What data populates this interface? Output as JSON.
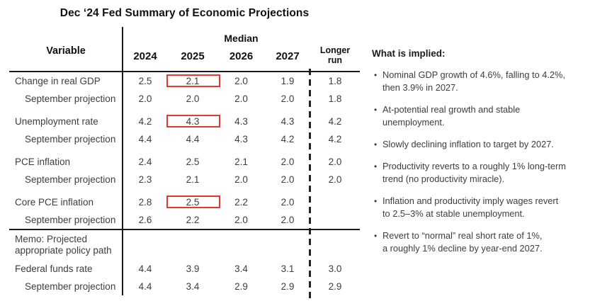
{
  "title": "Dec ‘24 Fed Summary of Economic Projections",
  "table": {
    "variable_header": "Variable",
    "median_header": "Median",
    "years": [
      "2024",
      "2025",
      "2026",
      "2027"
    ],
    "longer_run_header": "Longer run",
    "rows": [
      {
        "label": "Change in real GDP",
        "values": [
          "2.5",
          "2.1",
          "2.0",
          "1.9",
          "1.8"
        ]
      },
      {
        "label": "September projection",
        "values": [
          "2.0",
          "2.0",
          "2.0",
          "2.0",
          "1.8"
        ]
      },
      {
        "label": "Unemployment rate",
        "values": [
          "4.2",
          "4.3",
          "4.3",
          "4.3",
          "4.2"
        ]
      },
      {
        "label": "September projection",
        "values": [
          "4.4",
          "4.4",
          "4.3",
          "4.2",
          "4.2"
        ]
      },
      {
        "label": "PCE inflation",
        "values": [
          "2.4",
          "2.5",
          "2.1",
          "2.0",
          "2.0"
        ]
      },
      {
        "label": "September projection",
        "values": [
          "2.3",
          "2.1",
          "2.0",
          "2.0",
          "2.0"
        ]
      },
      {
        "label": "Core PCE inflation",
        "values": [
          "2.8",
          "2.5",
          "2.2",
          "2.0",
          ""
        ]
      },
      {
        "label": "September projection",
        "values": [
          "2.6",
          "2.2",
          "2.0",
          "2.0",
          ""
        ]
      },
      {
        "label": "Federal funds rate",
        "values": [
          "4.4",
          "3.9",
          "3.4",
          "3.1",
          "3.0"
        ]
      },
      {
        "label": "September projection",
        "values": [
          "4.4",
          "3.4",
          "2.9",
          "2.9",
          "2.9"
        ]
      }
    ],
    "memo_label": "Memo: Projected\nappropriate policy path",
    "highlight_color": "#e23a2e",
    "highlights": [
      {
        "row": 0,
        "column": "2025",
        "value": "2.1"
      },
      {
        "row": 2,
        "column": "2025",
        "value": "4.3"
      },
      {
        "row": 6,
        "column": "2025",
        "value": "2.5"
      }
    ]
  },
  "panel": {
    "heading": "What is implied:",
    "bullet_marker": "•",
    "bullets": [
      "Nominal GDP growth of 4.6%, falling to 4.2%,\nthen 3.9% in 2027.",
      "At-potential real growth and stable\nunemployment.",
      "Slowly declining inflation to target by 2027.",
      "Productivity reverts to a roughly 1% long-term\ntrend (no productivity miracle).",
      "Inflation and productivity imply wages revert\nto 2.5–3% at stable unemployment.",
      "Revert to “normal” real short rate of 1%,\na roughly 1% decline by year-end 2027."
    ]
  }
}
